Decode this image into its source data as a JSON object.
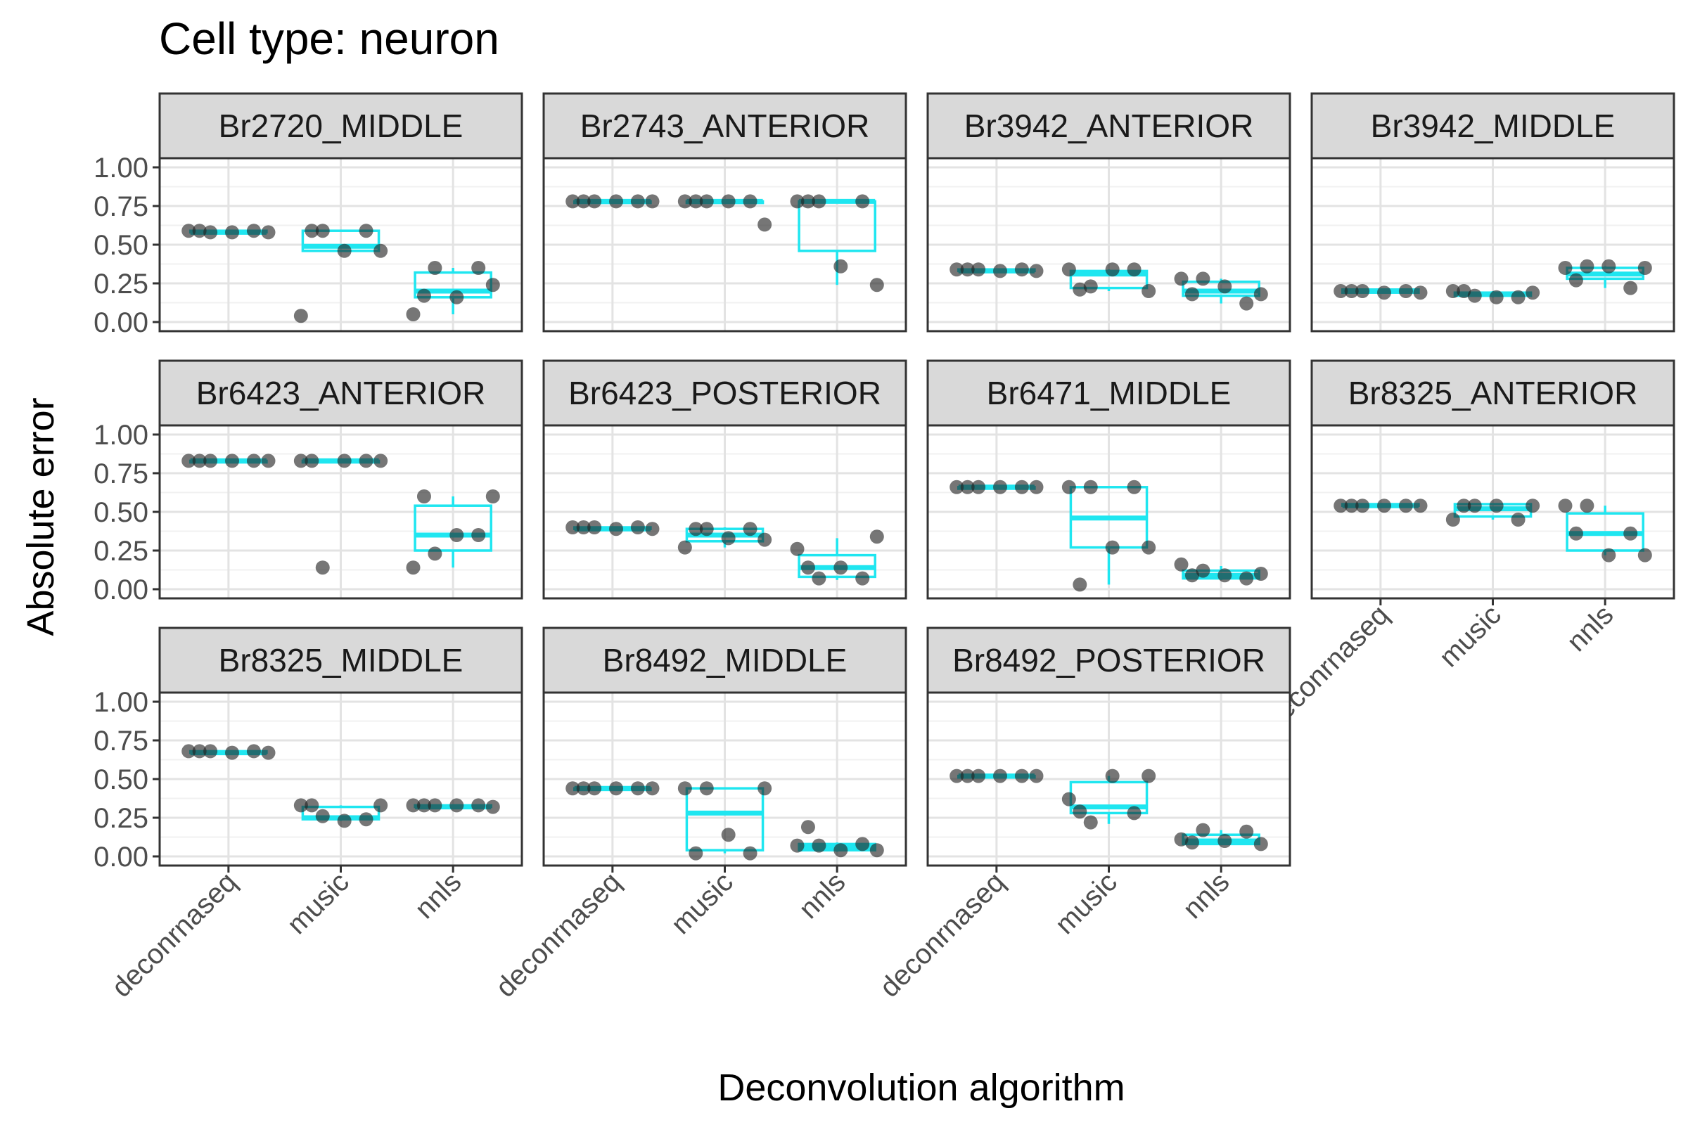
{
  "chart_data": {
    "type": "boxplot",
    "title": "Cell type: neuron",
    "xlabel": "Deconvolution algorithm",
    "ylabel": "Absolute error",
    "categories": [
      "deconrnaseq",
      "music",
      "nnls"
    ],
    "ylim": [
      0,
      1
    ],
    "y_ticks": [
      "0.00",
      "0.25",
      "0.50",
      "0.75",
      "1.00"
    ],
    "grid": true,
    "legend": "none",
    "colors": {
      "box": "#1fe6f0",
      "point": "#222222",
      "strip_bg": "#d9d9d9",
      "grid_major": "#e3e3e3",
      "grid_minor": "#f1f1f1",
      "border": "#333333"
    },
    "panels": [
      {
        "label": "Br2720_MIDDLE",
        "boxes": [
          {
            "q1": 0.58,
            "median": 0.58,
            "q3": 0.59,
            "lo": 0.58,
            "hi": 0.59
          },
          {
            "q1": 0.46,
            "median": 0.49,
            "q3": 0.59,
            "lo": 0.46,
            "hi": 0.59
          },
          {
            "q1": 0.16,
            "median": 0.2,
            "q3": 0.32,
            "lo": 0.05,
            "hi": 0.35
          }
        ],
        "points": [
          [
            0.59,
            0.58,
            0.58,
            0.59,
            0.58,
            0.59
          ],
          [
            0.04,
            0.59,
            0.46,
            0.59,
            0.46,
            0.59
          ],
          [
            0.05,
            0.35,
            0.16,
            0.35,
            0.24,
            0.17
          ]
        ]
      },
      {
        "label": "Br2743_ANTERIOR",
        "boxes": [
          {
            "q1": 0.77,
            "median": 0.78,
            "q3": 0.78,
            "lo": 0.77,
            "hi": 0.78
          },
          {
            "q1": 0.77,
            "median": 0.78,
            "q3": 0.78,
            "lo": 0.77,
            "hi": 0.78
          },
          {
            "q1": 0.46,
            "median": 0.78,
            "q3": 0.78,
            "lo": 0.24,
            "hi": 0.78
          }
        ],
        "points": [
          [
            0.78,
            0.78,
            0.78,
            0.78,
            0.78,
            0.78
          ],
          [
            0.78,
            0.78,
            0.78,
            0.78,
            0.63,
            0.78
          ],
          [
            0.78,
            0.78,
            0.36,
            0.78,
            0.24,
            0.78
          ]
        ]
      },
      {
        "label": "Br3942_ANTERIOR",
        "boxes": [
          {
            "q1": 0.33,
            "median": 0.33,
            "q3": 0.34,
            "lo": 0.33,
            "hi": 0.34
          },
          {
            "q1": 0.22,
            "median": 0.31,
            "q3": 0.33,
            "lo": 0.2,
            "hi": 0.34
          },
          {
            "q1": 0.17,
            "median": 0.2,
            "q3": 0.26,
            "lo": 0.12,
            "hi": 0.28
          }
        ],
        "points": [
          [
            0.34,
            0.34,
            0.33,
            0.34,
            0.33,
            0.34
          ],
          [
            0.34,
            0.23,
            0.34,
            0.34,
            0.2,
            0.21
          ],
          [
            0.28,
            0.28,
            0.23,
            0.12,
            0.18,
            0.18
          ]
        ]
      },
      {
        "label": "Br3942_MIDDLE",
        "boxes": [
          {
            "q1": 0.19,
            "median": 0.2,
            "q3": 0.21,
            "lo": 0.19,
            "hi": 0.21
          },
          {
            "q1": 0.17,
            "median": 0.18,
            "q3": 0.19,
            "lo": 0.16,
            "hi": 0.2
          },
          {
            "q1": 0.28,
            "median": 0.31,
            "q3": 0.35,
            "lo": 0.22,
            "hi": 0.36
          }
        ],
        "points": [
          [
            0.2,
            0.2,
            0.19,
            0.2,
            0.19,
            0.2
          ],
          [
            0.2,
            0.17,
            0.16,
            0.16,
            0.19,
            0.2
          ],
          [
            0.35,
            0.36,
            0.36,
            0.22,
            0.35,
            0.27
          ]
        ]
      },
      {
        "label": "Br6423_ANTERIOR",
        "boxes": [
          {
            "q1": 0.82,
            "median": 0.83,
            "q3": 0.83,
            "lo": 0.82,
            "hi": 0.83
          },
          {
            "q1": 0.82,
            "median": 0.83,
            "q3": 0.83,
            "lo": 0.82,
            "hi": 0.83
          },
          {
            "q1": 0.25,
            "median": 0.35,
            "q3": 0.54,
            "lo": 0.14,
            "hi": 0.6
          }
        ],
        "points": [
          [
            0.83,
            0.83,
            0.83,
            0.83,
            0.83,
            0.83
          ],
          [
            0.83,
            0.14,
            0.83,
            0.83,
            0.83,
            0.83
          ],
          [
            0.14,
            0.23,
            0.35,
            0.35,
            0.6,
            0.6
          ]
        ]
      },
      {
        "label": "Br6423_POSTERIOR",
        "boxes": [
          {
            "q1": 0.39,
            "median": 0.39,
            "q3": 0.4,
            "lo": 0.39,
            "hi": 0.4
          },
          {
            "q1": 0.31,
            "median": 0.35,
            "q3": 0.39,
            "lo": 0.27,
            "hi": 0.4
          },
          {
            "q1": 0.08,
            "median": 0.14,
            "q3": 0.22,
            "lo": 0.06,
            "hi": 0.33
          }
        ],
        "points": [
          [
            0.4,
            0.4,
            0.39,
            0.4,
            0.39,
            0.4
          ],
          [
            0.27,
            0.39,
            0.33,
            0.39,
            0.32,
            0.39
          ],
          [
            0.26,
            0.07,
            0.14,
            0.07,
            0.34,
            0.14
          ]
        ]
      },
      {
        "label": "Br6471_MIDDLE",
        "boxes": [
          {
            "q1": 0.65,
            "median": 0.66,
            "q3": 0.66,
            "lo": 0.65,
            "hi": 0.66
          },
          {
            "q1": 0.27,
            "median": 0.46,
            "q3": 0.66,
            "lo": 0.03,
            "hi": 0.66
          },
          {
            "q1": 0.07,
            "median": 0.09,
            "q3": 0.12,
            "lo": 0.06,
            "hi": 0.15
          }
        ],
        "points": [
          [
            0.66,
            0.66,
            0.66,
            0.66,
            0.66,
            0.66
          ],
          [
            0.66,
            0.66,
            0.27,
            0.66,
            0.27,
            0.03
          ],
          [
            0.16,
            0.12,
            0.09,
            0.07,
            0.1,
            0.09
          ]
        ]
      },
      {
        "label": "Br8325_ANTERIOR",
        "boxes": [
          {
            "q1": 0.54,
            "median": 0.54,
            "q3": 0.55,
            "lo": 0.54,
            "hi": 0.55
          },
          {
            "q1": 0.47,
            "median": 0.52,
            "q3": 0.55,
            "lo": 0.45,
            "hi": 0.55
          },
          {
            "q1": 0.25,
            "median": 0.36,
            "q3": 0.49,
            "lo": 0.22,
            "hi": 0.54
          }
        ],
        "points": [
          [
            0.54,
            0.54,
            0.54,
            0.54,
            0.54,
            0.54
          ],
          [
            0.45,
            0.54,
            0.54,
            0.45,
            0.54,
            0.54
          ],
          [
            0.54,
            0.54,
            0.22,
            0.36,
            0.22,
            0.36
          ]
        ]
      },
      {
        "label": "Br8325_MIDDLE",
        "boxes": [
          {
            "q1": 0.67,
            "median": 0.67,
            "q3": 0.68,
            "lo": 0.67,
            "hi": 0.68
          },
          {
            "q1": 0.24,
            "median": 0.25,
            "q3": 0.32,
            "lo": 0.23,
            "hi": 0.33
          },
          {
            "q1": 0.32,
            "median": 0.32,
            "q3": 0.33,
            "lo": 0.32,
            "hi": 0.33
          }
        ],
        "points": [
          [
            0.68,
            0.68,
            0.67,
            0.68,
            0.67,
            0.68
          ],
          [
            0.33,
            0.26,
            0.23,
            0.24,
            0.33,
            0.33
          ],
          [
            0.33,
            0.33,
            0.33,
            0.33,
            0.32,
            0.33
          ]
        ]
      },
      {
        "label": "Br8492_MIDDLE",
        "boxes": [
          {
            "q1": 0.43,
            "median": 0.44,
            "q3": 0.44,
            "lo": 0.43,
            "hi": 0.44
          },
          {
            "q1": 0.04,
            "median": 0.28,
            "q3": 0.44,
            "lo": 0.02,
            "hi": 0.44
          },
          {
            "q1": 0.04,
            "median": 0.06,
            "q3": 0.08,
            "lo": 0.03,
            "hi": 0.09
          }
        ],
        "points": [
          [
            0.44,
            0.44,
            0.44,
            0.44,
            0.44,
            0.44
          ],
          [
            0.44,
            0.44,
            0.14,
            0.02,
            0.44,
            0.02
          ],
          [
            0.07,
            0.07,
            0.04,
            0.08,
            0.04,
            0.19
          ]
        ]
      },
      {
        "label": "Br8492_POSTERIOR",
        "boxes": [
          {
            "q1": 0.51,
            "median": 0.52,
            "q3": 0.52,
            "lo": 0.51,
            "hi": 0.52
          },
          {
            "q1": 0.28,
            "median": 0.32,
            "q3": 0.48,
            "lo": 0.21,
            "hi": 0.52
          },
          {
            "q1": 0.08,
            "median": 0.1,
            "q3": 0.14,
            "lo": 0.08,
            "hi": 0.17
          }
        ],
        "points": [
          [
            0.52,
            0.52,
            0.52,
            0.52,
            0.52,
            0.52
          ],
          [
            0.37,
            0.22,
            0.52,
            0.28,
            0.52,
            0.29
          ],
          [
            0.11,
            0.17,
            0.1,
            0.16,
            0.08,
            0.09
          ]
        ]
      }
    ]
  }
}
